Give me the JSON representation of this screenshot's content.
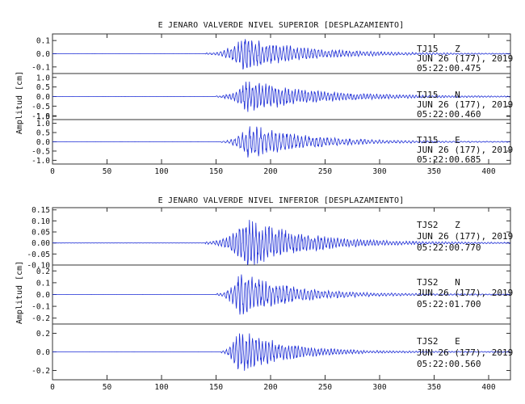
{
  "chart_data": [
    {
      "type": "line",
      "title": "E JENARO VALVERDE NIVEL SUPERIOR [DESPLAZAMIENTO]",
      "ylabel": "Amplitud [cm]",
      "xlim": [
        0,
        420
      ],
      "x_ticks": [
        "0",
        "50",
        "100",
        "150",
        "200",
        "250",
        "300",
        "350",
        "400"
      ],
      "traces": [
        {
          "station": "TJ15",
          "component": "Z",
          "date": "JUN 26 (177), 2019",
          "time": "05:22:00.475",
          "ylim": [
            -0.15,
            0.15
          ],
          "y_ticks": [
            "0.1",
            "0.0",
            "-0.1"
          ],
          "y_tick_values": [
            0.1,
            0.0,
            -0.1
          ],
          "onset_s": 140,
          "peak_s": 175,
          "peak_amp": 0.13,
          "decay_s": 55,
          "period_s": 3.2
        },
        {
          "station": "TJ15",
          "component": "N",
          "date": "JUN 26 (177), 2019",
          "time": "05:22:00.460",
          "ylim": [
            -1.2,
            1.2
          ],
          "y_ticks": [
            "1.0",
            "0.5",
            "0.0",
            "-0.5",
            "-1.0"
          ],
          "y_tick_values": [
            1.0,
            0.5,
            0.0,
            -0.5,
            -1.0
          ],
          "onset_s": 150,
          "peak_s": 178,
          "peak_amp": 0.9,
          "decay_s": 60,
          "period_s": 3.0
        },
        {
          "station": "TJ15",
          "component": "E",
          "date": "JUN 26 (177), 2019",
          "time": "05:22:00.685",
          "ylim": [
            -1.2,
            1.2
          ],
          "y_ticks": [
            "1.5",
            "1.0",
            "0.5",
            "0.0",
            "-0.5",
            "-1.0"
          ],
          "y_tick_values": [
            1.5,
            1.0,
            0.5,
            0.0,
            -0.5,
            -1.0
          ],
          "onset_s": 155,
          "peak_s": 180,
          "peak_amp": 1.0,
          "decay_s": 50,
          "period_s": 3.4
        }
      ]
    },
    {
      "type": "line",
      "title": "E JENARO VALVERDE NIVEL INFERIOR [DESPLAZAMIENTO]",
      "ylabel": "Amplitud [cm]",
      "xlim": [
        0,
        420
      ],
      "x_ticks": [
        "0",
        "50",
        "100",
        "150",
        "200",
        "250",
        "300",
        "350",
        "400"
      ],
      "traces": [
        {
          "station": "TJS2",
          "component": "Z",
          "date": "JUN 26 (177), 2019",
          "time": "05:22:00.770",
          "ylim": [
            -0.1,
            0.16
          ],
          "y_ticks": [
            "0.15",
            "0.10",
            "0.05",
            "0.00",
            "-0.05",
            "-0.10"
          ],
          "y_tick_values": [
            0.15,
            0.1,
            0.05,
            0.0,
            -0.05,
            -0.1
          ],
          "onset_s": 140,
          "peak_s": 178,
          "peak_amp": 0.12,
          "decay_s": 50,
          "period_s": 3.0
        },
        {
          "station": "TJS2",
          "component": "N",
          "date": "JUN 26 (177), 2019",
          "time": "05:22:01.700",
          "ylim": [
            -0.25,
            0.25
          ],
          "y_ticks": [
            "0.2",
            "0.1",
            "0.0",
            "-0.1",
            "-0.2"
          ],
          "y_tick_values": [
            0.2,
            0.1,
            0.0,
            -0.1,
            -0.2
          ],
          "onset_s": 150,
          "peak_s": 172,
          "peak_amp": 0.2,
          "decay_s": 45,
          "period_s": 3.2
        },
        {
          "station": "TJS2",
          "component": "E",
          "date": "JUN 26 (177), 2019",
          "time": "05:22:00.560",
          "ylim": [
            -0.3,
            0.3
          ],
          "y_ticks": [
            "0.2",
            "0.0",
            "-0.2"
          ],
          "y_tick_values": [
            0.2,
            0.0,
            -0.2
          ],
          "onset_s": 155,
          "peak_s": 170,
          "peak_amp": 0.27,
          "decay_s": 40,
          "period_s": 3.0
        }
      ]
    }
  ],
  "colors": {
    "trace": "#1f2fd6",
    "axis": "#333333",
    "text": "#111111"
  }
}
